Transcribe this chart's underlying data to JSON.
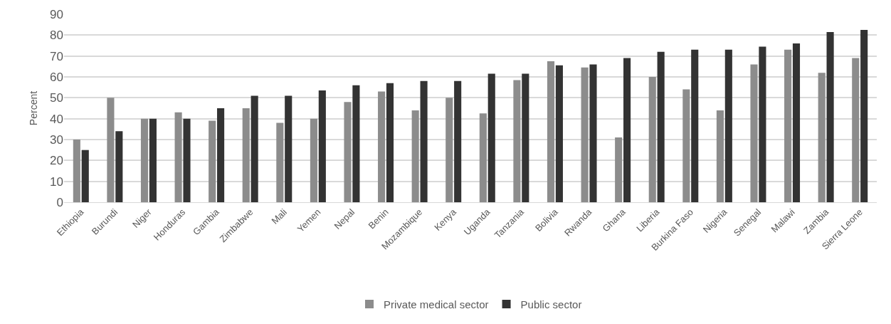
{
  "chart_data": {
    "type": "bar",
    "ylabel": "Percent",
    "categories": [
      "Ethiopia",
      "Burundi",
      "Niger",
      "Honduras",
      "Gambia",
      "Zimbabwe",
      "Mali",
      "Yemen",
      "Nepal",
      "Benin",
      "Mozambique",
      "Kenya",
      "Uganda",
      "Tanzania",
      "Bolivia",
      "Rwanda",
      "Ghana",
      "Liberia",
      "Burkina Faso",
      "Nigeria",
      "Senegal",
      "Malawi",
      "Zambia",
      "Sierra Leone"
    ],
    "series": [
      {
        "name": "Private medical sector",
        "color": "#8c8c8c",
        "values": [
          30,
          50,
          40,
          43,
          39,
          45,
          38,
          40,
          48,
          53,
          44,
          50,
          42.5,
          58.5,
          67.5,
          64.5,
          31,
          60,
          54,
          44,
          66,
          73,
          62,
          69
        ]
      },
      {
        "name": "Public sector",
        "color": "#333333",
        "values": [
          25,
          34,
          40,
          40,
          45,
          51,
          51,
          53.5,
          56,
          57,
          58,
          58,
          61.5,
          61.5,
          65.5,
          66,
          69,
          72,
          73,
          73,
          74.5,
          76,
          81.5,
          82.5
        ]
      }
    ],
    "ylim": [
      0,
      90
    ],
    "yticks": [
      0,
      10,
      20,
      30,
      40,
      50,
      60,
      70,
      80,
      90
    ],
    "grid": "y",
    "legend": "bottom"
  }
}
